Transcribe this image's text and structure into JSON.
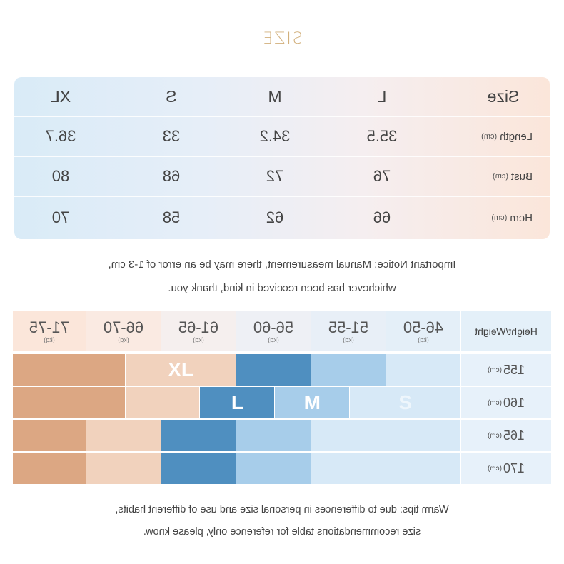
{
  "title": "SIZE",
  "size_table": {
    "headers": [
      "Size",
      "S",
      "M",
      "L",
      "XL"
    ],
    "rows": [
      {
        "label": "Length",
        "unit": "(cm)",
        "values": [
          "33",
          "34.2",
          "35.5",
          "36.7"
        ]
      },
      {
        "label": "Bust",
        "unit": "(cm)",
        "values": [
          "68",
          "72",
          "76",
          "80"
        ]
      },
      {
        "label": "Hem",
        "unit": "(cm)",
        "values": [
          "58",
          "62",
          "66",
          "70"
        ]
      }
    ]
  },
  "notice": {
    "line1": "Important Notice: Manual measurement, there may be an error of 1-3 cm,",
    "line2": "whichever has been received in kind, thank you."
  },
  "hw_table": {
    "corner": "Height/Weight",
    "weights": [
      {
        "range": "46-50",
        "unit": "(kg)"
      },
      {
        "range": "51-55",
        "unit": "(kg)"
      },
      {
        "range": "56-60",
        "unit": "(kg)"
      },
      {
        "range": "61-65",
        "unit": "(kg)"
      },
      {
        "range": "66-70",
        "unit": "(kg)"
      },
      {
        "range": "71-75",
        "unit": "(kg)"
      }
    ],
    "heights": [
      {
        "value": "155",
        "unit": "(cm)"
      },
      {
        "value": "160",
        "unit": "(cm)"
      },
      {
        "value": "165",
        "unit": "(cm)"
      },
      {
        "value": "170",
        "unit": "(cm)"
      }
    ],
    "size_labels": {
      "s": "S",
      "m": "M",
      "l": "L",
      "xl": "XL"
    },
    "colors": {
      "s_light": "#d7e9f7",
      "m_light": "#a7cdea",
      "l_dark": "#4f8fc0",
      "xl_light": "#f1d2bd",
      "xl_dark": "#dca783"
    }
  },
  "tips": {
    "line1": "Warm tips: due to differences in personal size and use of different habits,",
    "line2": "size recommendations table for reference only, please know."
  }
}
